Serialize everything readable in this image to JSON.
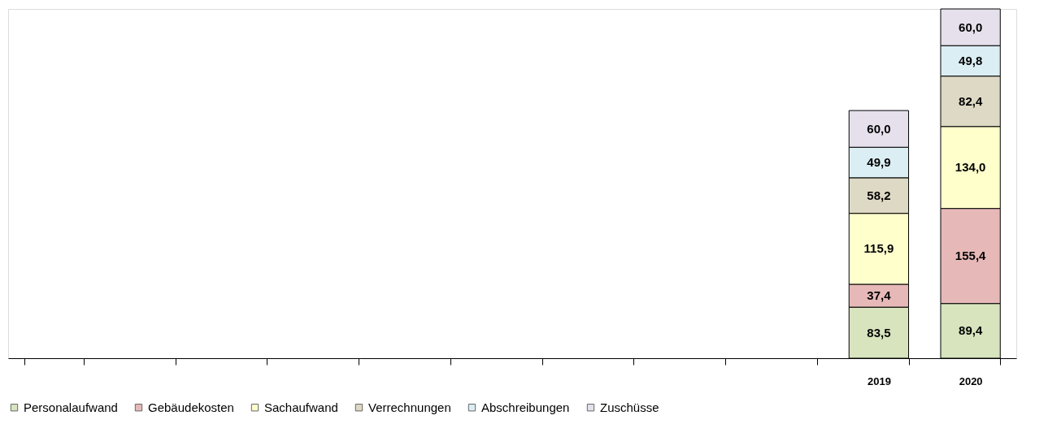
{
  "chart_data": {
    "type": "bar",
    "stacked": true,
    "legend": "bottom",
    "grid": false,
    "categories": [
      null,
      null,
      null,
      null,
      null,
      null,
      null,
      null,
      null,
      "2019",
      "2020"
    ],
    "series": [
      {
        "name": "Personalaufwand",
        "color": "#d7e4bd",
        "values": [
          null,
          null,
          null,
          null,
          null,
          null,
          null,
          null,
          null,
          83.5,
          89.4
        ],
        "value_labels": [
          null,
          null,
          null,
          null,
          null,
          null,
          null,
          null,
          null,
          "83,5",
          "89,4"
        ]
      },
      {
        "name": "Gebäudekosten",
        "color": "#e6b9b8",
        "values": [
          null,
          null,
          null,
          null,
          null,
          null,
          null,
          null,
          null,
          37.4,
          155.4
        ],
        "value_labels": [
          null,
          null,
          null,
          null,
          null,
          null,
          null,
          null,
          null,
          "37,4",
          "155,4"
        ]
      },
      {
        "name": "Sachaufwand",
        "color": "#ffffcc",
        "values": [
          null,
          null,
          null,
          null,
          null,
          null,
          null,
          null,
          null,
          115.9,
          134.0
        ],
        "value_labels": [
          null,
          null,
          null,
          null,
          null,
          null,
          null,
          null,
          null,
          "115,9",
          "134,0"
        ]
      },
      {
        "name": "Verrechnungen",
        "color": "#ddd9c4",
        "values": [
          null,
          null,
          null,
          null,
          null,
          null,
          null,
          null,
          null,
          58.2,
          82.4
        ],
        "value_labels": [
          null,
          null,
          null,
          null,
          null,
          null,
          null,
          null,
          null,
          "58,2",
          "82,4"
        ]
      },
      {
        "name": "Abschreibungen",
        "color": "#dbeef4",
        "values": [
          null,
          null,
          null,
          null,
          null,
          null,
          null,
          null,
          null,
          49.9,
          49.8
        ],
        "value_labels": [
          null,
          null,
          null,
          null,
          null,
          null,
          null,
          null,
          null,
          "49,9",
          "49,8"
        ]
      },
      {
        "name": "Zuschüsse",
        "color": "#e6e0ec",
        "values": [
          null,
          null,
          null,
          null,
          null,
          null,
          null,
          null,
          null,
          60.0,
          60.0
        ],
        "value_labels": [
          null,
          null,
          null,
          null,
          null,
          null,
          null,
          null,
          null,
          "60,0",
          "60,0"
        ]
      }
    ]
  }
}
